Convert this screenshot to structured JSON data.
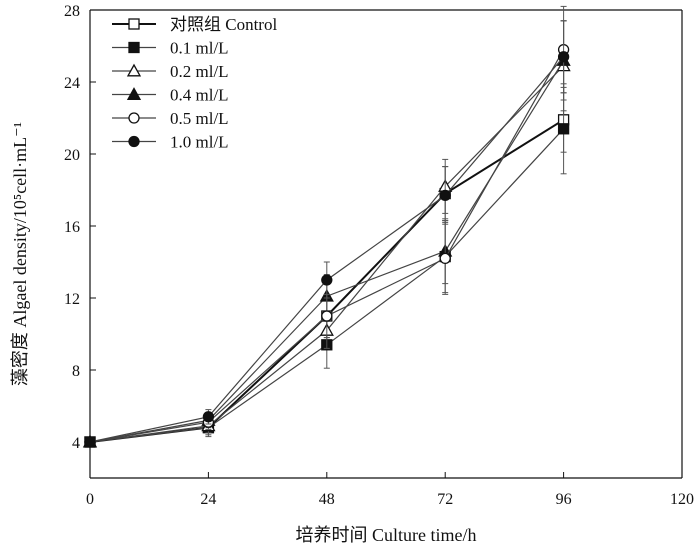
{
  "chart_data": {
    "type": "line",
    "title": "",
    "xlabel": "培养时间 Culture time/h",
    "ylabel": "藻密度 Algael density/10⁵cell·mL⁻¹",
    "xlim": [
      0,
      120
    ],
    "ylim": [
      2,
      28
    ],
    "xticks": [
      "0",
      "24",
      "48",
      "72",
      "96",
      "120"
    ],
    "yticks": [
      "4",
      "8",
      "12",
      "16",
      "20",
      "24",
      "28"
    ],
    "grid": false,
    "legend_position": "top-left",
    "x": [
      0,
      24,
      48,
      72,
      96
    ],
    "series": [
      {
        "name": "对照组 Control",
        "marker": "square-open",
        "values": [
          4.0,
          4.8,
          11.0,
          17.8,
          21.9
        ],
        "errors": [
          0.1,
          0.5,
          1.2,
          1.5,
          1.8
        ]
      },
      {
        "name": "0.1 ml/L",
        "marker": "square-filled",
        "values": [
          4.0,
          4.8,
          9.4,
          14.3,
          21.4
        ],
        "errors": [
          0.1,
          0.4,
          1.3,
          2.0,
          2.5
        ]
      },
      {
        "name": "0.2 ml/L",
        "marker": "triangle-open",
        "values": [
          4.0,
          4.9,
          10.2,
          18.2,
          24.9
        ],
        "errors": [
          0.1,
          0.4,
          1.0,
          1.5,
          2.5
        ]
      },
      {
        "name": "0.4 ml/L",
        "marker": "triangle-filled",
        "values": [
          4.0,
          5.2,
          12.1,
          14.6,
          25.2
        ],
        "errors": [
          0.1,
          0.4,
          1.2,
          1.8,
          2.2
        ]
      },
      {
        "name": "0.5 ml/L",
        "marker": "circle-open",
        "values": [
          4.0,
          5.1,
          11.0,
          14.2,
          25.8
        ],
        "errors": [
          0.1,
          0.4,
          1.2,
          2.0,
          2.4
        ]
      },
      {
        "name": "1.0 ml/L",
        "marker": "circle-filled",
        "values": [
          4.0,
          5.4,
          13.0,
          17.7,
          25.4
        ],
        "errors": [
          0.1,
          0.4,
          1.0,
          1.6,
          2.0
        ]
      }
    ]
  }
}
